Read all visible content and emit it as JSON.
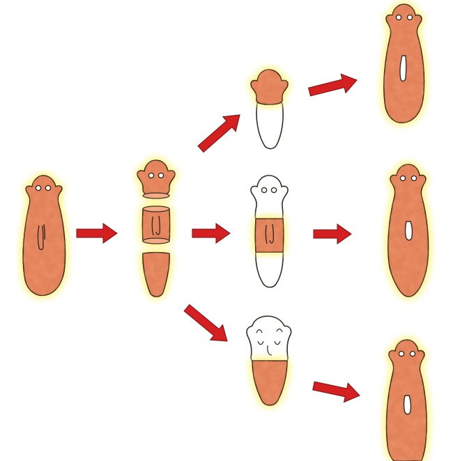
{
  "diagram": {
    "title": "",
    "colors": {
      "tissue": "#e2825a",
      "tissue_dark": "#c9502e",
      "tissue_light": "#f2ab84",
      "new_tissue": "#ffffff",
      "glow": "#fff27a",
      "outline": "#3a2a20",
      "arrow": "#d42020",
      "arrow_outline": "#7a0e0e"
    },
    "stages": [
      {
        "id": "whole-planarian",
        "icon": "planarian-whole"
      },
      {
        "id": "cut-pieces",
        "icon": "planarian-cut-into-three"
      },
      {
        "id": "head-piece-regrowing-tail",
        "icon": "planarian-regenerating"
      },
      {
        "id": "trunk-piece-regrowing-head-and-tail",
        "icon": "planarian-regenerating"
      },
      {
        "id": "tail-piece-regrowing-head",
        "icon": "planarian-regenerating"
      },
      {
        "id": "regenerated-from-head",
        "icon": "planarian-whole"
      },
      {
        "id": "regenerated-from-trunk",
        "icon": "planarian-whole"
      },
      {
        "id": "regenerated-from-tail",
        "icon": "planarian-whole"
      }
    ],
    "arrows": [
      {
        "from": "whole-planarian",
        "to": "cut-pieces"
      },
      {
        "from": "cut-pieces",
        "to": "head-piece-regrowing-tail"
      },
      {
        "from": "cut-pieces",
        "to": "trunk-piece-regrowing-head-and-tail"
      },
      {
        "from": "cut-pieces",
        "to": "tail-piece-regrowing-head"
      },
      {
        "from": "head-piece-regrowing-tail",
        "to": "regenerated-from-head"
      },
      {
        "from": "trunk-piece-regrowing-head-and-tail",
        "to": "regenerated-from-trunk"
      },
      {
        "from": "tail-piece-regrowing-head",
        "to": "regenerated-from-tail"
      }
    ]
  }
}
